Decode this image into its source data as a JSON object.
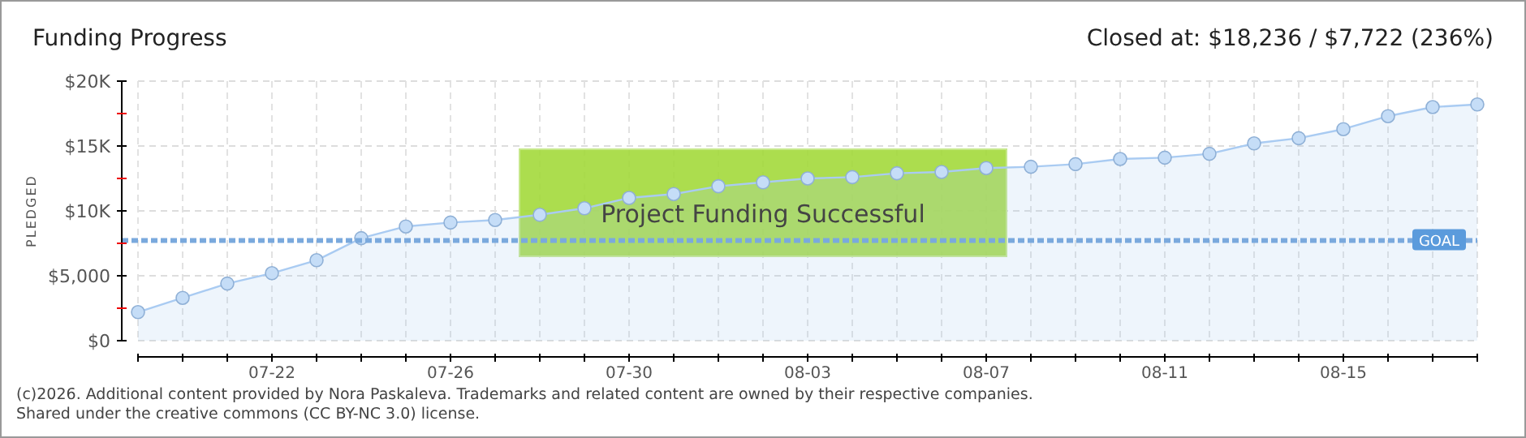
{
  "chart_data": {
    "type": "area",
    "title": "Funding Progress",
    "subtitle": "Closed at:  $18,236 /  $7,722 (236%)",
    "ylabel": "PLEDGED",
    "x": [
      "--07-19",
      "--07-20",
      "--07-21",
      "--07-22",
      "--07-23",
      "--07-24",
      "--07-25",
      "--07-26",
      "--07-27",
      "--07-28",
      "--07-29",
      "--07-30",
      "--07-31",
      "--08-01",
      "--08-02",
      "--08-03",
      "--08-04",
      "--08-05",
      "--08-06",
      "--08-07",
      "--08-08",
      "--08-09",
      "--08-10",
      "--08-11",
      "--08-12",
      "--08-13",
      "--08-14",
      "--08-15",
      "--08-16",
      "--08-17",
      "--08-18"
    ],
    "series": [
      {
        "color": "#a9cbf2",
        "values": [
          2200,
          3300,
          4400,
          5200,
          6200,
          7900,
          8800,
          9100,
          9300,
          9700,
          10200,
          11000,
          11300,
          11900,
          12200,
          12500,
          12600,
          12900,
          13000,
          13300,
          13400,
          13600,
          14000,
          14100,
          14400,
          15200,
          15600,
          16300,
          17300,
          18000,
          18200
        ]
      }
    ],
    "xlim": [
      "--07-19",
      "--08-18"
    ],
    "xticks": [
      {
        "value": "--07-19",
        "label": null
      },
      {
        "value": "--07-20",
        "label": null
      },
      {
        "value": "--07-21",
        "label": null
      },
      {
        "value": "--07-22",
        "label": "07-22"
      },
      {
        "value": "--07-23",
        "label": null
      },
      {
        "value": "--07-24",
        "label": null
      },
      {
        "value": "--07-25",
        "label": null
      },
      {
        "value": "--07-26",
        "label": "07-26"
      },
      {
        "value": "--07-27",
        "label": null
      },
      {
        "value": "--07-28",
        "label": null
      },
      {
        "value": "--07-29",
        "label": null
      },
      {
        "value": "--07-30",
        "label": "07-30"
      },
      {
        "value": "--07-31",
        "label": null
      },
      {
        "value": "--08-01",
        "label": null
      },
      {
        "value": "--08-02",
        "label": null
      },
      {
        "value": "--08-03",
        "label": "08-03"
      },
      {
        "value": "--08-04",
        "label": null
      },
      {
        "value": "--08-05",
        "label": null
      },
      {
        "value": "--08-06",
        "label": null
      },
      {
        "value": "--08-07",
        "label": "08-07"
      },
      {
        "value": "--08-08",
        "label": null
      },
      {
        "value": "--08-09",
        "label": null
      },
      {
        "value": "--08-10",
        "label": null
      },
      {
        "value": "--08-11",
        "label": "08-11"
      },
      {
        "value": "--08-12",
        "label": null
      },
      {
        "value": "--08-13",
        "label": null
      },
      {
        "value": "--08-14",
        "label": null
      },
      {
        "value": "--08-15",
        "label": "08-15"
      },
      {
        "value": "--08-16",
        "label": null
      },
      {
        "value": "--08-17",
        "label": null
      },
      {
        "value": "--08-18",
        "label": null
      }
    ],
    "ylim": [
      0,
      20000
    ],
    "yticks": [
      {
        "value": 0,
        "label": "$0"
      },
      {
        "value": 2500,
        "label": null
      },
      {
        "value": 5000,
        "label": "$5,000"
      },
      {
        "value": 7500,
        "label": null
      },
      {
        "value": 10000,
        "label": "$10K"
      },
      {
        "value": 12500,
        "label": null
      },
      {
        "value": 15000,
        "label": "$15K"
      },
      {
        "value": 17500,
        "label": null
      },
      {
        "value": 20000,
        "label": "$20K"
      }
    ],
    "grid": true,
    "marker": "circle",
    "ref_lines": [
      {
        "axis": "y",
        "value": 7722,
        "label": "GOAL",
        "color": "#7aa9dd",
        "line_style": "dashed"
      }
    ],
    "annotations": [
      "Project Funding Successful",
      "(c)2026. Additional content provided by Nora Paskaleva. Trademarks and related content are owned by their respective companies.",
      "Shared under the creative commons (CC BY-NC 3.0) license."
    ]
  }
}
